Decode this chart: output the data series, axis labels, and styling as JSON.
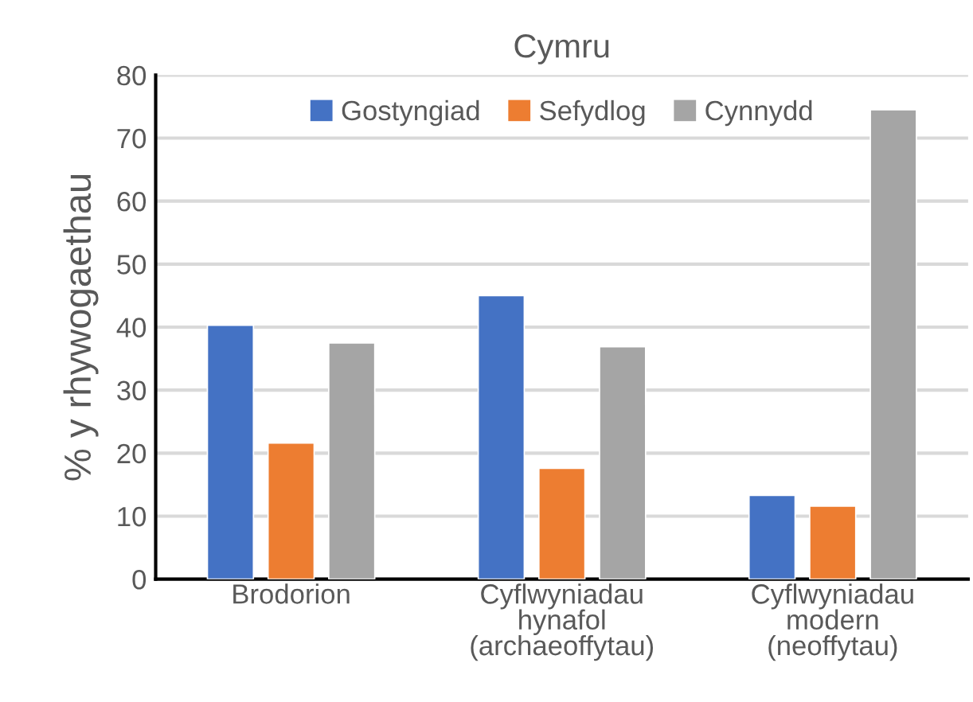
{
  "chart_data": {
    "type": "bar",
    "title": "Cymru",
    "ylabel": "% y rhywogaethau",
    "categories": [
      "Brodorion",
      "Cyflwyniadau\nhynafol\n(archaeoffytau)",
      "Cyflwyniadau\nmodern\n(neoffytau)"
    ],
    "series": [
      {
        "name": "Gostyngiad",
        "color": "#4472c4",
        "values": [
          40.3,
          45.0,
          13.3
        ]
      },
      {
        "name": "Sefydlog",
        "color": "#ed7d31",
        "values": [
          21.6,
          17.6,
          11.6
        ]
      },
      {
        "name": "Cynnydd",
        "color": "#a5a5a5",
        "values": [
          37.5,
          36.9,
          74.5
        ]
      }
    ],
    "ylim": [
      0,
      80
    ],
    "yticks": [
      0,
      10,
      20,
      30,
      40,
      50,
      60,
      70,
      80
    ],
    "grid": "y",
    "legend": "top"
  }
}
